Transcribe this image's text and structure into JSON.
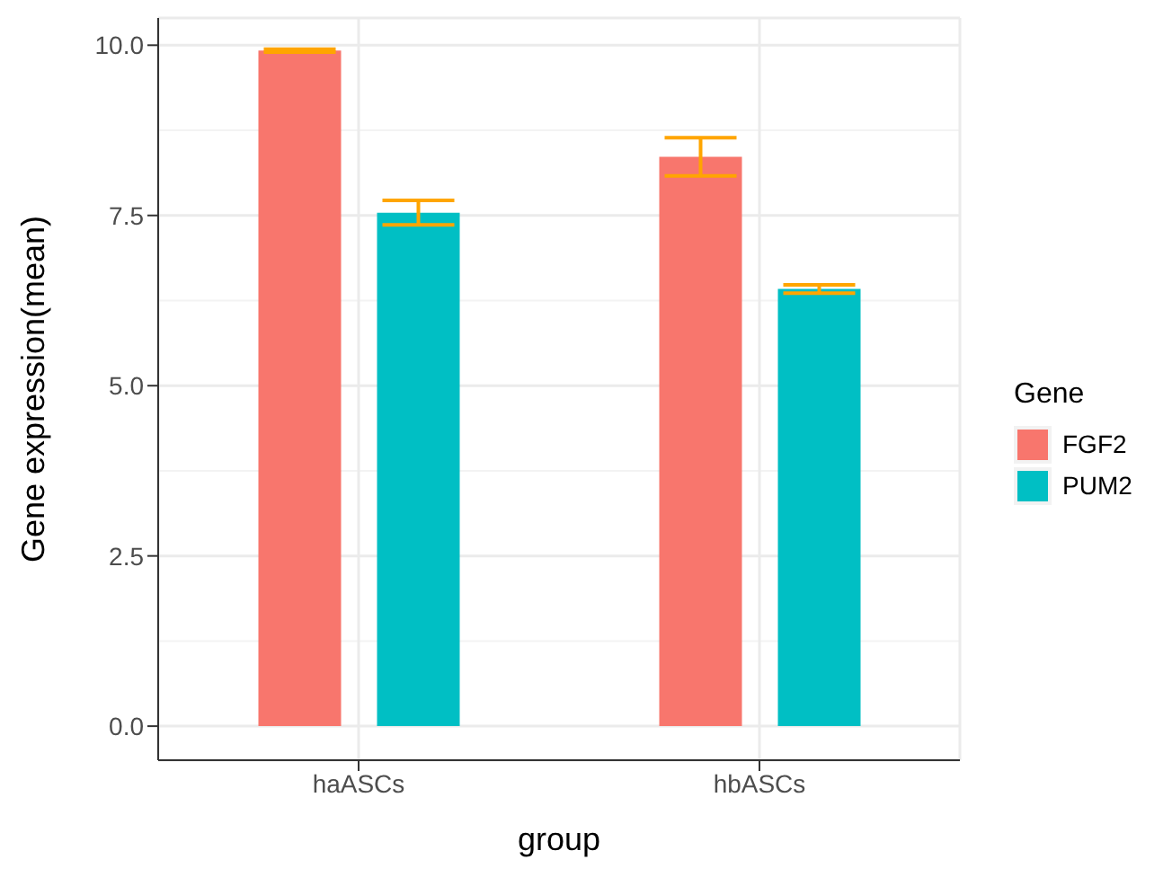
{
  "chart_data": {
    "type": "bar",
    "xlabel": "group",
    "ylabel": "Gene expression(mean)",
    "legend_title": "Gene",
    "categories": [
      "haASCs",
      "hbASCs"
    ],
    "series": [
      {
        "name": "FGF2",
        "color": "#f8766d",
        "values": [
          9.92,
          8.36
        ],
        "errors": [
          0.02,
          0.28
        ]
      },
      {
        "name": "PUM2",
        "color": "#00bfc4",
        "values": [
          7.54,
          6.42
        ],
        "errors": [
          0.18,
          0.06
        ]
      }
    ],
    "ylim": [
      -0.5,
      10.4
    ],
    "yticks": [
      {
        "value": 0,
        "label": "0.0"
      },
      {
        "value": 2.5,
        "label": "2.5"
      },
      {
        "value": 5,
        "label": "5.0"
      },
      {
        "value": 7.5,
        "label": "7.5"
      },
      {
        "value": 10,
        "label": "10.0"
      }
    ],
    "grid": true,
    "legend": "right"
  }
}
